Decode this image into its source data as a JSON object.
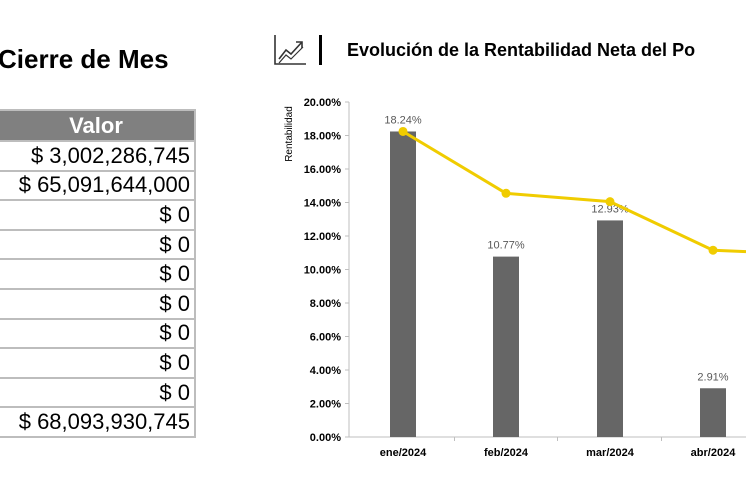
{
  "table": {
    "title": "Cierre de Mes",
    "header": "Valor",
    "values": [
      "$ 3,002,286,745",
      "$ 65,091,644,000",
      "$ 0",
      "$ 0",
      "$ 0",
      "$ 0",
      "$ 0",
      "$ 0",
      "$ 0",
      "$ 68,093,930,745"
    ]
  },
  "chart": {
    "title": "Evolución de la Rentabilidad Neta del Po",
    "icon": "trend-chart-icon"
  },
  "chart_data": {
    "type": "bar",
    "title": "Evolución de la Rentabilidad Neta del Po",
    "ylabel": "Rentabilidad",
    "xlabel": "",
    "categories": [
      "ene/2024",
      "feb/2024",
      "mar/2024",
      "abr/2024"
    ],
    "series": [
      {
        "type": "bar",
        "values": [
          18.24,
          10.77,
          12.93,
          2.91
        ],
        "labels": [
          "18.24%",
          "10.77%",
          "12.93%",
          "2.91%"
        ],
        "color": "#666666"
      },
      {
        "type": "line",
        "values": [
          18.24,
          14.55,
          14.05,
          11.15
        ],
        "color": "#f0cc00"
      }
    ],
    "next_line_value": 10.9,
    "ylim": [
      0,
      20
    ],
    "yticks": [
      "0.00%",
      "2.00%",
      "4.00%",
      "6.00%",
      "8.00%",
      "10.00%",
      "12.00%",
      "14.00%",
      "16.00%",
      "18.00%",
      "20.00%"
    ],
    "grid": false,
    "legend": "none"
  }
}
